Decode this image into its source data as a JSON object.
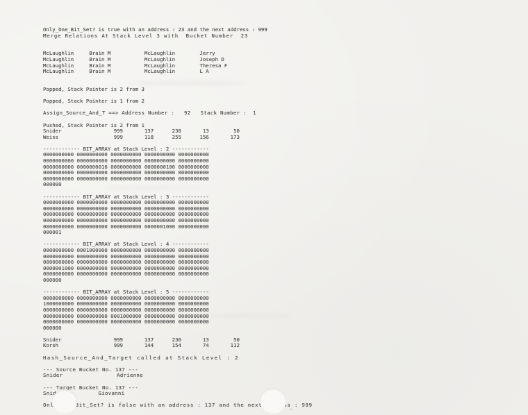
{
  "colors": {
    "paper": "#f1f0ed",
    "ink": "#4a4a4a",
    "punch_hole": "#f9f8f6"
  },
  "printout": {
    "only_true": "Only_One_Bit_Set? is true with an address : 23 and the next address : 999",
    "merge": "Merge Relations At Stack Level 3 with  Bucket Number  23",
    "merge_table": {
      "rows": [
        [
          "McLaughlin",
          "Brain M",
          "McLaughlin",
          "Jerry"
        ],
        [
          "McLaughlin",
          "Brain M",
          "McLaughlin",
          "Joseph D"
        ],
        [
          "McLaughlin",
          "Brain M",
          "McLaughlin",
          "Theresa F"
        ],
        [
          "McLaughlin",
          "Brain M",
          "McLaughlin",
          "L A"
        ]
      ]
    },
    "popped_1": "Popped, Stack Pointer is 2 from 3",
    "popped_2": "Popped, Stack Pointer is 1 from 2",
    "assign": "Assign_Source_And_T ==> Address Number :   92   Stack Number :  1",
    "pushed_header": "Pushed, Stack Pointer is 2 from 1",
    "pushed_table": {
      "rows": [
        [
          "Snider",
          "999",
          "137",
          "236",
          "13",
          "50"
        ],
        [
          "Weiss",
          "999",
          "118",
          "255",
          "156",
          "173"
        ]
      ]
    },
    "bit_arrays": [
      {
        "header": "------------ BIT_ARRAY at Stack Level : 2 ------------",
        "rows": [
          [
            "0000000000",
            "0000000000",
            "0000000000",
            "0000000000",
            "0000000000"
          ],
          [
            "0000000000",
            "0000000000",
            "0000000000",
            "0000000000",
            "0000000000"
          ],
          [
            "0000000000",
            "0000000010",
            "0000000000",
            "0000000100",
            "0000000000"
          ],
          [
            "0000000000",
            "0000000000",
            "0000000000",
            "0000000000",
            "0000000000"
          ],
          [
            "0000000000",
            "0000000000",
            "0000000000",
            "0000000000",
            "0000000000"
          ]
        ],
        "remainder": "000000"
      },
      {
        "header": "------------ BIT_ARRAY at Stack Level : 3 ------------",
        "rows": [
          [
            "0000000000",
            "0000000000",
            "0000000000",
            "0000000000",
            "0000000000"
          ],
          [
            "0000000000",
            "0000000000",
            "0000000000",
            "0000000000",
            "0000000000"
          ],
          [
            "0000000000",
            "0000000000",
            "0000000000",
            "0000000000",
            "0000000000"
          ],
          [
            "0000000000",
            "0000000000",
            "0000000000",
            "0000000000",
            "0000000000"
          ],
          [
            "0000000000",
            "0000000000",
            "0000000000",
            "0000001000",
            "0000000000"
          ]
        ],
        "remainder": "000001"
      },
      {
        "header": "------------ BIT_ARRAY at Stack Level : 4 ------------",
        "rows": [
          [
            "0000000000",
            "0001000000",
            "0000000000",
            "0000000000",
            "0000000000"
          ],
          [
            "0000000000",
            "0000000000",
            "0000000000",
            "0000000000",
            "0000000000"
          ],
          [
            "0000000000",
            "0000000000",
            "0000000000",
            "0000000000",
            "0000000000"
          ],
          [
            "0000001000",
            "0000000000",
            "0000000000",
            "0000000000",
            "0000000000"
          ],
          [
            "0000000000",
            "0000000000",
            "0000000000",
            "0000000000",
            "0000000000"
          ]
        ],
        "remainder": "000000"
      },
      {
        "header": "------------ BIT_ARRAY at Stack Level : 5 ------------",
        "rows": [
          [
            "0000000000",
            "0000000000",
            "0000000000",
            "0000000000",
            "0000000000"
          ],
          [
            "1000000000",
            "0000000000",
            "0000000000",
            "0000000000",
            "0000000000"
          ],
          [
            "0000000000",
            "0000000000",
            "0000000000",
            "0000000000",
            "0000000000"
          ],
          [
            "0000000000",
            "0000000000",
            "0001000000",
            "0000000000",
            "0000000000"
          ],
          [
            "0000000000",
            "0000000000",
            "0000000000",
            "0000000000",
            "0000000000"
          ]
        ],
        "remainder": "000000"
      }
    ],
    "result_table": {
      "rows": [
        [
          "Snider",
          "999",
          "137",
          "236",
          "13",
          "50"
        ],
        [
          "Korsh",
          "999",
          "144",
          "154",
          "74",
          "112"
        ]
      ]
    },
    "hash_line": "Hash_Source_And_Target called at Stack Level : 2",
    "source_bucket": {
      "header": "--- Source Bucket No. 137 ---",
      "name": "Snider",
      "value": "Adrienne"
    },
    "target_bucket": {
      "header": "--- Target Bucket No. 137 ---",
      "name": "Snider",
      "value": "Giovanni"
    },
    "only_false": "Only_One_Bit_Set? is false with an address : 137 and the next address : 999"
  }
}
